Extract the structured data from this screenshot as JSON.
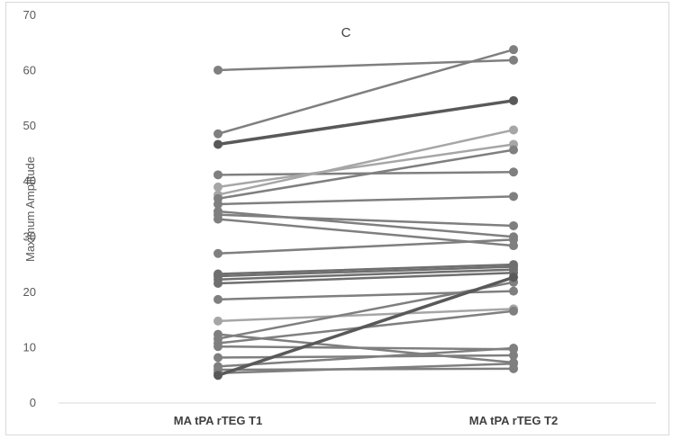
{
  "chart_data": {
    "type": "line",
    "title": "C",
    "xlabel": "",
    "ylabel": "Maximum Amplitude",
    "categories": [
      "MA tPA rTEG T1",
      "MA tPA rTEG T2"
    ],
    "ylim": [
      0,
      70
    ],
    "yticks": [
      0,
      10,
      20,
      30,
      40,
      50,
      60,
      70
    ],
    "grid": false,
    "legend": "none",
    "line_color": "#7f7f7f",
    "series": [
      {
        "values": [
          60.1,
          61.9
        ]
      },
      {
        "values": [
          48.6,
          63.8
        ]
      },
      {
        "values": [
          46.7,
          54.6
        ],
        "color": "#595959"
      },
      {
        "values": [
          41.2,
          41.7
        ]
      },
      {
        "values": [
          39.0,
          46.7
        ],
        "color": "#a6a6a6"
      },
      {
        "values": [
          37.6,
          49.3
        ],
        "color": "#a6a6a6"
      },
      {
        "values": [
          36.9,
          45.7
        ]
      },
      {
        "values": [
          35.9,
          37.3
        ]
      },
      {
        "values": [
          34.6,
          30.0
        ]
      },
      {
        "values": [
          34.0,
          32.0
        ]
      },
      {
        "values": [
          33.2,
          28.4
        ]
      },
      {
        "values": [
          27.0,
          29.5
        ]
      },
      {
        "values": [
          23.3,
          25.0
        ],
        "color": "#6f6f6f"
      },
      {
        "values": [
          22.9,
          24.6
        ],
        "color": "#6f6f6f"
      },
      {
        "values": [
          22.3,
          24.1
        ],
        "color": "#6f6f6f"
      },
      {
        "values": [
          21.6,
          23.5
        ],
        "color": "#6f6f6f"
      },
      {
        "values": [
          18.7,
          20.2
        ]
      },
      {
        "values": [
          14.8,
          17.0
        ],
        "color": "#a6a6a6"
      },
      {
        "values": [
          12.4,
          7.3
        ]
      },
      {
        "values": [
          11.6,
          21.8
        ]
      },
      {
        "values": [
          10.8,
          16.6
        ]
      },
      {
        "values": [
          10.2,
          9.7
        ]
      },
      {
        "values": [
          8.2,
          8.6
        ]
      },
      {
        "values": [
          6.6,
          9.9
        ]
      },
      {
        "values": [
          6.0,
          6.2
        ]
      },
      {
        "values": [
          5.4,
          7.1
        ]
      },
      {
        "values": [
          5.0,
          22.7
        ],
        "color": "#595959"
      }
    ]
  }
}
